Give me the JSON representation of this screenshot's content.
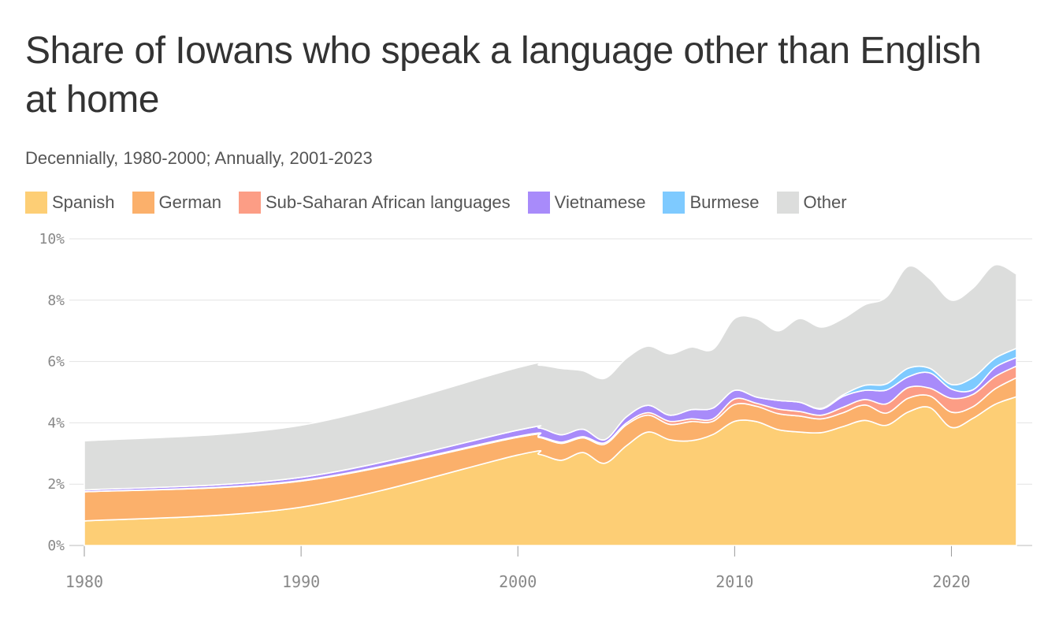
{
  "chart_data": {
    "type": "area",
    "stacked": true,
    "title": "Share of Iowans who speak a language other than English at home",
    "subtitle": "Decennially, 1980-2000; Annually, 2001-2023",
    "ylim": [
      0,
      10
    ],
    "xlim": [
      1980,
      2023
    ],
    "y_ticks": [
      "0%",
      "2%",
      "4%",
      "6%",
      "8%",
      "10%"
    ],
    "y_tick_values": [
      0,
      2,
      4,
      6,
      8,
      10
    ],
    "x_ticks": [
      "1980",
      "1990",
      "2000",
      "2010",
      "2020"
    ],
    "x_tick_values": [
      1980,
      1990,
      2000,
      2010,
      2020
    ],
    "grid": true,
    "legend_position": "top",
    "x": [
      1980,
      1990,
      2000,
      2001,
      2002,
      2003,
      2004,
      2005,
      2006,
      2007,
      2008,
      2009,
      2010,
      2011,
      2012,
      2013,
      2014,
      2015,
      2016,
      2017,
      2018,
      2019,
      2020,
      2021,
      2022,
      2023
    ],
    "series": [
      {
        "name": "Spanish",
        "color": "#fdce75",
        "values": [
          0.8,
          1.25,
          2.95,
          2.97,
          2.78,
          3.03,
          2.68,
          3.25,
          3.7,
          3.45,
          3.42,
          3.62,
          4.05,
          4.04,
          3.78,
          3.7,
          3.68,
          3.88,
          4.08,
          3.92,
          4.35,
          4.5,
          3.85,
          4.15,
          4.6,
          4.85
        ]
      },
      {
        "name": "German",
        "color": "#fbb06b",
        "values": [
          0.95,
          0.85,
          0.58,
          0.55,
          0.55,
          0.48,
          0.62,
          0.68,
          0.55,
          0.5,
          0.62,
          0.43,
          0.55,
          0.5,
          0.52,
          0.52,
          0.45,
          0.45,
          0.5,
          0.4,
          0.45,
          0.38,
          0.5,
          0.38,
          0.5,
          0.62
        ]
      },
      {
        "name": "Sub-Saharan African languages",
        "color": "#fc9d85",
        "values": [
          0.0,
          0.02,
          0.03,
          0.03,
          0.04,
          0.04,
          0.05,
          0.06,
          0.08,
          0.1,
          0.09,
          0.08,
          0.18,
          0.1,
          0.15,
          0.15,
          0.12,
          0.18,
          0.18,
          0.3,
          0.35,
          0.25,
          0.45,
          0.4,
          0.4,
          0.38
        ]
      },
      {
        "name": "Vietnamese",
        "color": "#a88bfa",
        "values": [
          0.06,
          0.1,
          0.2,
          0.28,
          0.24,
          0.24,
          0.1,
          0.2,
          0.24,
          0.2,
          0.3,
          0.35,
          0.28,
          0.2,
          0.28,
          0.3,
          0.2,
          0.35,
          0.3,
          0.45,
          0.35,
          0.5,
          0.3,
          0.15,
          0.3,
          0.28
        ]
      },
      {
        "name": "Burmese",
        "color": "#7ecaff",
        "values": [
          0.0,
          0.0,
          0.0,
          0.0,
          0.0,
          0.0,
          0.0,
          0.0,
          0.0,
          0.0,
          0.0,
          0.0,
          0.0,
          0.0,
          0.0,
          0.0,
          0.02,
          0.05,
          0.16,
          0.2,
          0.28,
          0.15,
          0.15,
          0.4,
          0.3,
          0.3
        ]
      },
      {
        "name": "Other",
        "color": "#dcdddc",
        "values": [
          1.6,
          1.7,
          2.04,
          2.05,
          2.16,
          1.91,
          2.0,
          1.91,
          1.93,
          2.0,
          2.04,
          1.92,
          2.34,
          2.56,
          2.27,
          2.73,
          2.65,
          2.49,
          2.63,
          2.83,
          3.32,
          2.92,
          2.75,
          2.92,
          3.05,
          2.42
        ]
      }
    ]
  }
}
